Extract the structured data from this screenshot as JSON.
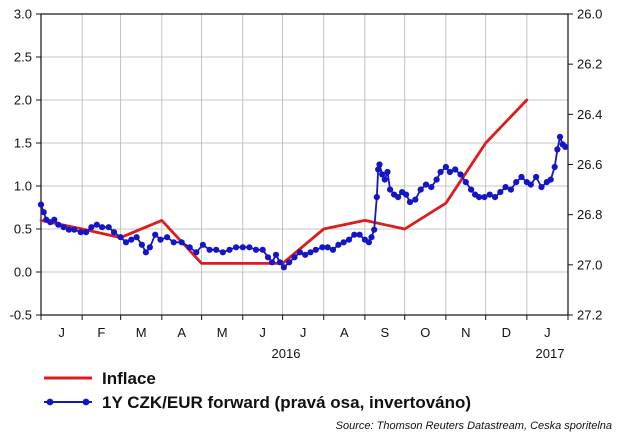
{
  "chart_data": {
    "type": "line",
    "x_axis": {
      "month_labels": [
        "J",
        "F",
        "M",
        "A",
        "M",
        "J",
        "J",
        "A",
        "S",
        "O",
        "N",
        "D",
        "J"
      ],
      "year_labels": [
        "2016",
        "2017"
      ],
      "range": [
        "2016-01-01",
        "2017-02-01"
      ]
    },
    "y_left": {
      "ylim": [
        -0.5,
        3.0
      ],
      "ticks": [
        "3.0",
        "2.5",
        "2.0",
        "1.5",
        "1.0",
        "0.5",
        "0.0",
        "-0.5"
      ]
    },
    "y_right": {
      "ylim": [
        26.0,
        27.2
      ],
      "inverted": true,
      "ticks": [
        "26.0",
        "26.2",
        "26.4",
        "26.6",
        "26.8",
        "27.0",
        "27.2"
      ]
    },
    "grid": true,
    "legend_position": "bottom",
    "series": [
      {
        "name": "Inflace",
        "axis": "left",
        "color": "#dd1c1c",
        "points": [
          [
            "2016-01-01",
            0.6
          ],
          [
            "2016-02-01",
            0.5
          ],
          [
            "2016-03-01",
            0.4
          ],
          [
            "2016-04-01",
            0.6
          ],
          [
            "2016-05-01",
            0.1
          ],
          [
            "2016-06-01",
            0.1
          ],
          [
            "2016-07-01",
            0.1
          ],
          [
            "2016-08-01",
            0.5
          ],
          [
            "2016-09-01",
            0.6
          ],
          [
            "2016-10-01",
            0.5
          ],
          [
            "2016-11-01",
            0.8
          ],
          [
            "2016-12-01",
            1.5
          ],
          [
            "2017-01-01",
            2.0
          ]
        ]
      },
      {
        "name": "1Y CZK/EUR forward (pravá osa, invertováno)",
        "axis": "right",
        "color": "#1515c8",
        "points": [
          [
            "2016-01-01",
            26.76
          ],
          [
            "2016-01-03",
            26.79
          ],
          [
            "2016-01-05",
            26.82
          ],
          [
            "2016-01-08",
            26.83
          ],
          [
            "2016-01-11",
            26.82
          ],
          [
            "2016-01-14",
            26.84
          ],
          [
            "2016-01-18",
            26.85
          ],
          [
            "2016-01-22",
            26.86
          ],
          [
            "2016-01-26",
            26.86
          ],
          [
            "2016-01-31",
            26.87
          ],
          [
            "2016-02-04",
            26.87
          ],
          [
            "2016-02-08",
            26.85
          ],
          [
            "2016-02-12",
            26.84
          ],
          [
            "2016-02-16",
            26.85
          ],
          [
            "2016-02-21",
            26.85
          ],
          [
            "2016-02-25",
            26.87
          ],
          [
            "2016-03-01",
            26.89
          ],
          [
            "2016-03-05",
            26.91
          ],
          [
            "2016-03-09",
            26.9
          ],
          [
            "2016-03-13",
            26.89
          ],
          [
            "2016-03-17",
            26.92
          ],
          [
            "2016-03-20",
            26.95
          ],
          [
            "2016-03-23",
            26.93
          ],
          [
            "2016-03-27",
            26.88
          ],
          [
            "2016-03-31",
            26.9
          ],
          [
            "2016-04-05",
            26.89
          ],
          [
            "2016-04-10",
            26.91
          ],
          [
            "2016-04-16",
            26.91
          ],
          [
            "2016-04-22",
            26.93
          ],
          [
            "2016-04-27",
            26.95
          ],
          [
            "2016-05-02",
            26.92
          ],
          [
            "2016-05-07",
            26.94
          ],
          [
            "2016-05-12",
            26.94
          ],
          [
            "2016-05-17",
            26.95
          ],
          [
            "2016-05-22",
            26.94
          ],
          [
            "2016-05-27",
            26.93
          ],
          [
            "2016-06-01",
            26.93
          ],
          [
            "2016-06-06",
            26.93
          ],
          [
            "2016-06-11",
            26.94
          ],
          [
            "2016-06-16",
            26.94
          ],
          [
            "2016-06-20",
            26.97
          ],
          [
            "2016-06-23",
            26.99
          ],
          [
            "2016-06-26",
            26.96
          ],
          [
            "2016-06-29",
            26.99
          ],
          [
            "2016-07-02",
            27.01
          ],
          [
            "2016-07-06",
            26.99
          ],
          [
            "2016-07-10",
            26.97
          ],
          [
            "2016-07-14",
            26.95
          ],
          [
            "2016-07-18",
            26.96
          ],
          [
            "2016-07-22",
            26.95
          ],
          [
            "2016-07-26",
            26.94
          ],
          [
            "2016-07-31",
            26.93
          ],
          [
            "2016-08-04",
            26.93
          ],
          [
            "2016-08-08",
            26.94
          ],
          [
            "2016-08-12",
            26.92
          ],
          [
            "2016-08-16",
            26.91
          ],
          [
            "2016-08-20",
            26.9
          ],
          [
            "2016-08-24",
            26.88
          ],
          [
            "2016-08-28",
            26.88
          ],
          [
            "2016-09-01",
            26.9
          ],
          [
            "2016-09-04",
            26.91
          ],
          [
            "2016-09-06",
            26.89
          ],
          [
            "2016-09-08",
            26.86
          ],
          [
            "2016-09-10",
            26.73
          ],
          [
            "2016-09-11",
            26.62
          ],
          [
            "2016-09-12",
            26.6
          ],
          [
            "2016-09-14",
            26.64
          ],
          [
            "2016-09-16",
            26.66
          ],
          [
            "2016-09-18",
            26.63
          ],
          [
            "2016-09-20",
            26.7
          ],
          [
            "2016-09-23",
            26.72
          ],
          [
            "2016-09-26",
            26.73
          ],
          [
            "2016-09-29",
            26.71
          ],
          [
            "2016-10-02",
            26.72
          ],
          [
            "2016-10-05",
            26.75
          ],
          [
            "2016-10-09",
            26.74
          ],
          [
            "2016-10-13",
            26.7
          ],
          [
            "2016-10-17",
            26.68
          ],
          [
            "2016-10-21",
            26.69
          ],
          [
            "2016-10-25",
            26.66
          ],
          [
            "2016-10-28",
            26.63
          ],
          [
            "2016-11-01",
            26.61
          ],
          [
            "2016-11-04",
            26.63
          ],
          [
            "2016-11-08",
            26.62
          ],
          [
            "2016-11-12",
            26.64
          ],
          [
            "2016-11-16",
            26.67
          ],
          [
            "2016-11-20",
            26.7
          ],
          [
            "2016-11-23",
            26.72
          ],
          [
            "2016-11-26",
            26.73
          ],
          [
            "2016-11-30",
            26.73
          ],
          [
            "2016-12-04",
            26.72
          ],
          [
            "2016-12-08",
            26.73
          ],
          [
            "2016-12-12",
            26.71
          ],
          [
            "2016-12-16",
            26.69
          ],
          [
            "2016-12-20",
            26.7
          ],
          [
            "2016-12-24",
            26.67
          ],
          [
            "2016-12-28",
            26.65
          ],
          [
            "2017-01-01",
            26.67
          ],
          [
            "2017-01-04",
            26.68
          ],
          [
            "2017-01-08",
            26.65
          ],
          [
            "2017-01-12",
            26.69
          ],
          [
            "2017-01-16",
            26.67
          ],
          [
            "2017-01-19",
            26.66
          ],
          [
            "2017-01-22",
            26.61
          ],
          [
            "2017-01-24",
            26.54
          ],
          [
            "2017-01-26",
            26.49
          ],
          [
            "2017-01-28",
            26.52
          ],
          [
            "2017-01-30",
            26.53
          ]
        ]
      }
    ],
    "source": "Source: Thomson Reuters Datastream, Ceska sporitelna"
  }
}
